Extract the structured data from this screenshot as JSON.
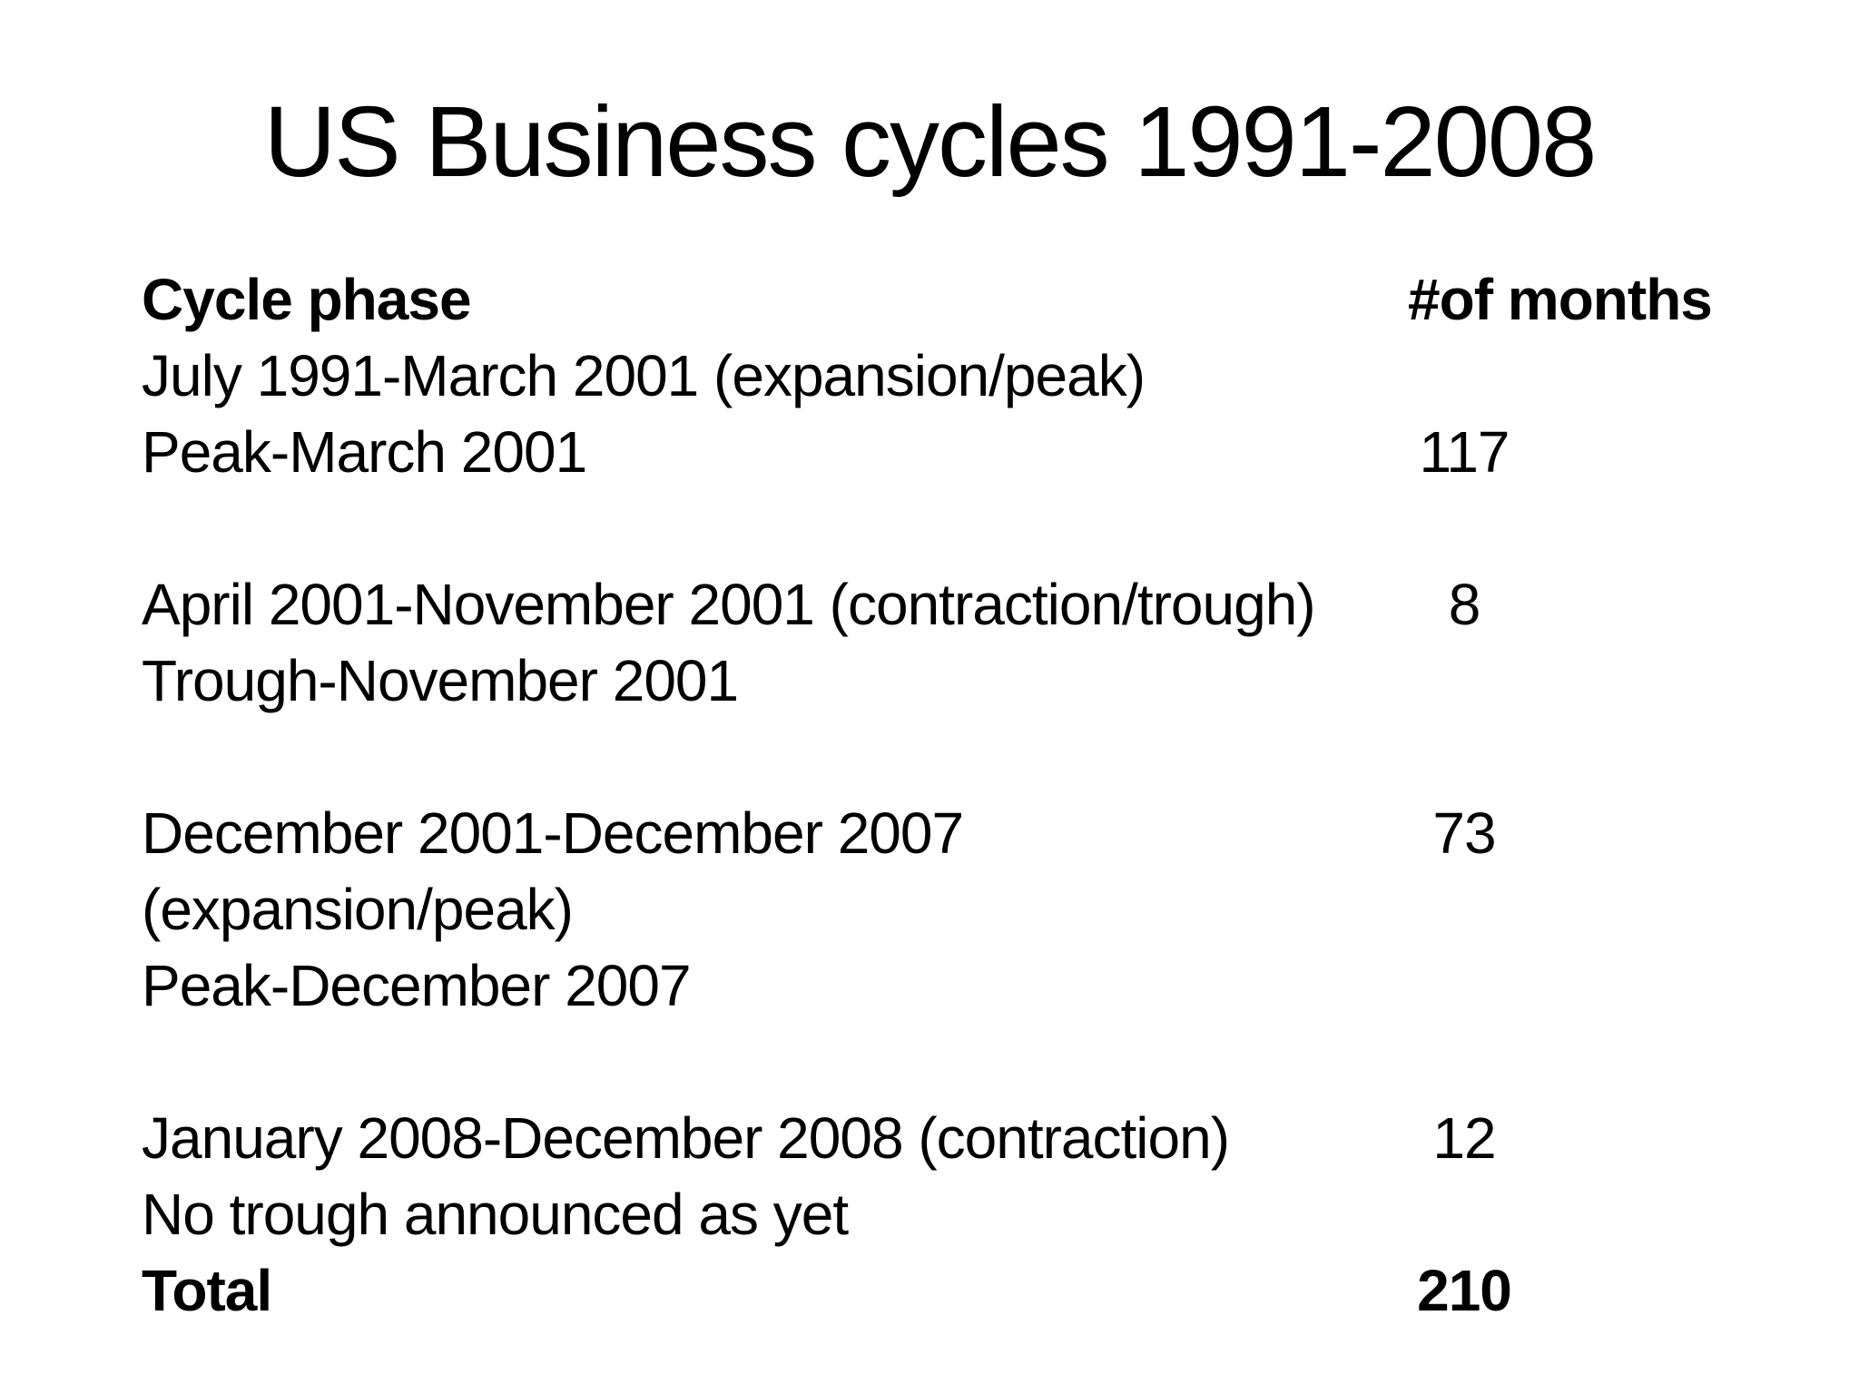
{
  "slide": {
    "title": "US Business cycles 1991-2008",
    "colors": {
      "background": "#ffffff",
      "text": "#000000"
    }
  },
  "table": {
    "header": {
      "phase": "Cycle phase",
      "months": "#of months"
    },
    "rows": [
      {
        "phase": "July 1991-March 2001 (expansion/peak)",
        "months": ""
      },
      {
        "phase": "Peak-March 2001",
        "months": "117"
      },
      {
        "phase": "April 2001-November 2001 (contraction/trough)",
        "months": "8"
      },
      {
        "phase": "Trough-November 2001",
        "months": ""
      },
      {
        "phase": "December 2001-December 2007",
        "months": "73"
      },
      {
        "phase": "(expansion/peak)",
        "months": ""
      },
      {
        "phase": "Peak-December 2007",
        "months": ""
      },
      {
        "phase": "January 2008-December 2008 (contraction)",
        "months": "12"
      },
      {
        "phase": "No trough announced as yet",
        "months": ""
      },
      {
        "phase": "Total",
        "months": "210"
      }
    ]
  }
}
